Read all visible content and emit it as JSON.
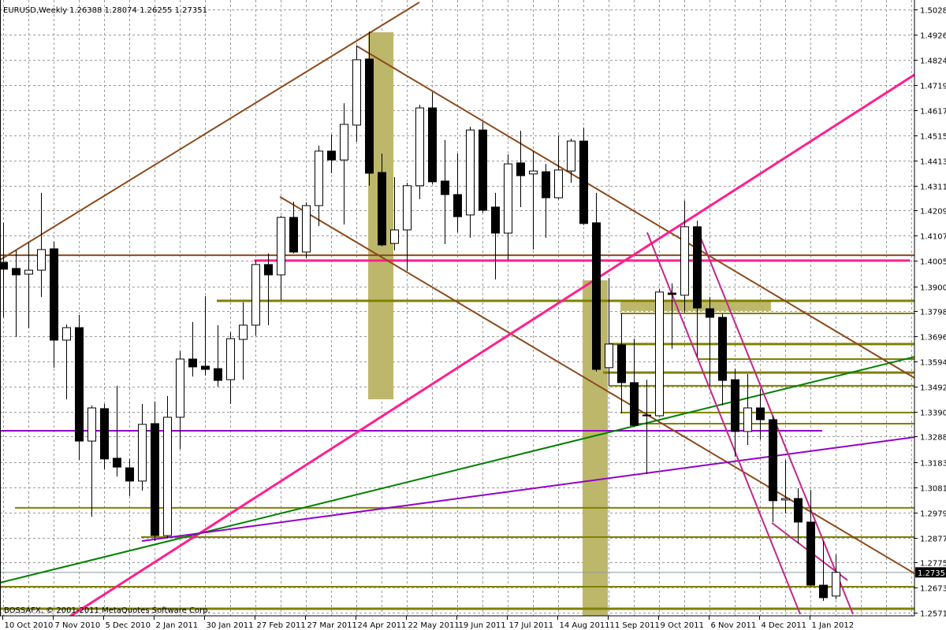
{
  "header": {
    "symbol_period": "EURUSD,Weekly",
    "ohlc": "1.26388 1.28074 1.26255 1.27351"
  },
  "footer": {
    "copyright": "BOSSAFX, © 2001-2011 MetaQuotes Software Corp."
  },
  "colors": {
    "background": "#ffffff",
    "grid": "#9a9a9a",
    "candle": "#000000",
    "brown_line": "#8b4a1c",
    "pink_line": "#ff1f8f",
    "olive_line": "#808000",
    "olive_zone": "#bdb76b",
    "green_line": "#008000",
    "purple_line": "#9400c8",
    "magenta_line": "#c0288a",
    "price_line": "#8a9aa0",
    "current_price_bg": "#000000"
  },
  "chart_data": {
    "type": "candlestick",
    "symbol": "EURUSD",
    "timeframe": "Weekly",
    "ylim": [
      1.2558,
      1.5066
    ],
    "grid": true,
    "y_ticks": [
      "1.50280",
      "1.49260",
      "1.48240",
      "1.47190",
      "1.46170",
      "1.45150",
      "1.44130",
      "1.43110",
      "1.42090",
      "1.41070",
      "1.40050",
      "1.39000",
      "1.37980",
      "1.36960",
      "1.35940",
      "1.34920",
      "1.33900",
      "1.32880",
      "1.31830",
      "1.30810",
      "1.29790",
      "1.28770",
      "1.27750",
      "1.26730",
      "1.25710"
    ],
    "x_ticks": [
      "10 Oct 2010",
      "7 Nov 2010",
      "5 Dec 2010",
      "2 Jan 2011",
      "30 Jan 2011",
      "27 Feb 2011",
      "27 Mar 2011",
      "24 Apr 2011",
      "22 May 2011",
      "19 Jun 2011",
      "17 Jul 2011",
      "14 Aug 2011",
      "11 Sep 2011",
      "9 Oct 2011",
      "6 Nov 2011",
      "4 Dec 2011",
      "1 Jan 2012"
    ],
    "x_tick_every_bars": 4,
    "current_price": "1.27351",
    "ohlc_fields": [
      "open",
      "high",
      "low",
      "close"
    ],
    "candles": [
      [
        1.3998,
        1.4159,
        1.3774,
        1.397
      ],
      [
        1.3973,
        1.4047,
        1.3694,
        1.3947
      ],
      [
        1.395,
        1.4079,
        1.3729,
        1.3966
      ],
      [
        1.3966,
        1.4281,
        1.3857,
        1.405
      ],
      [
        1.4053,
        1.4082,
        1.3569,
        1.3681
      ],
      [
        1.3681,
        1.3745,
        1.344,
        1.3732
      ],
      [
        1.3732,
        1.3784,
        1.3193,
        1.327
      ],
      [
        1.327,
        1.3415,
        1.2962,
        1.3405
      ],
      [
        1.3402,
        1.3421,
        1.3155,
        1.3197
      ],
      [
        1.32,
        1.3495,
        1.3126,
        1.3164
      ],
      [
        1.3161,
        1.3197,
        1.3046,
        1.3107
      ],
      [
        1.3107,
        1.3421,
        1.3068,
        1.3338
      ],
      [
        1.3341,
        1.3431,
        1.2863,
        1.2885
      ],
      [
        1.2885,
        1.3453,
        1.2876,
        1.3367
      ],
      [
        1.3367,
        1.3636,
        1.3238,
        1.3604
      ],
      [
        1.3604,
        1.3755,
        1.3533,
        1.3572
      ],
      [
        1.3575,
        1.386,
        1.3537,
        1.3562
      ],
      [
        1.3565,
        1.3742,
        1.3492,
        1.3517
      ],
      [
        1.352,
        1.3713,
        1.3421,
        1.3687
      ],
      [
        1.3684,
        1.3835,
        1.352,
        1.3742
      ],
      [
        1.3742,
        1.4005,
        1.37,
        1.3989
      ],
      [
        1.3989,
        1.4034,
        1.3742,
        1.3947
      ],
      [
        1.3947,
        1.4188,
        1.3844,
        1.4181
      ],
      [
        1.4181,
        1.4245,
        1.4034,
        1.404
      ],
      [
        1.404,
        1.4242,
        1.4014,
        1.4229
      ],
      [
        1.4229,
        1.4473,
        1.4146,
        1.4451
      ],
      [
        1.4451,
        1.4518,
        1.4361,
        1.4415
      ],
      [
        1.4415,
        1.4646,
        1.4152,
        1.456
      ],
      [
        1.4557,
        1.488,
        1.4489,
        1.4823
      ],
      [
        1.4826,
        1.4938,
        1.431,
        1.4361
      ],
      [
        1.4364,
        1.4441,
        1.4063,
        1.4069
      ],
      [
        1.4075,
        1.4345,
        1.4047,
        1.413
      ],
      [
        1.413,
        1.4322,
        1.3963,
        1.431
      ],
      [
        1.431,
        1.464,
        1.4255,
        1.4627
      ],
      [
        1.4627,
        1.4691,
        1.4316,
        1.4326
      ],
      [
        1.4329,
        1.4496,
        1.4072,
        1.4274
      ],
      [
        1.4274,
        1.4441,
        1.412,
        1.4184
      ],
      [
        1.4191,
        1.455,
        1.4098,
        1.4537
      ],
      [
        1.4537,
        1.4569,
        1.42,
        1.421
      ],
      [
        1.4223,
        1.4281,
        1.3928,
        1.4117
      ],
      [
        1.4117,
        1.4438,
        1.4008,
        1.4399
      ],
      [
        1.4403,
        1.4534,
        1.4223,
        1.4351
      ],
      [
        1.4358,
        1.4451,
        1.405,
        1.437
      ],
      [
        1.4367,
        1.4399,
        1.4098,
        1.4261
      ],
      [
        1.4261,
        1.4515,
        1.4255,
        1.4374
      ],
      [
        1.437,
        1.4502,
        1.4322,
        1.4492
      ],
      [
        1.4492,
        1.4547,
        1.415,
        1.4156
      ],
      [
        1.4159,
        1.4281,
        1.3553,
        1.3562
      ],
      [
        1.3569,
        1.3934,
        1.3495,
        1.3665
      ],
      [
        1.3662,
        1.379,
        1.3383,
        1.3508
      ],
      [
        1.3508,
        1.3687,
        1.333,
        1.3334
      ],
      [
        1.3376,
        1.352,
        1.3136,
        1.3373
      ],
      [
        1.3373,
        1.3889,
        1.337,
        1.3877
      ],
      [
        1.3873,
        1.3912,
        1.3646,
        1.3867
      ],
      [
        1.3864,
        1.4249,
        1.3793,
        1.4143
      ],
      [
        1.4143,
        1.4168,
        1.3613,
        1.3812
      ],
      [
        1.3809,
        1.3857,
        1.3495,
        1.3774
      ],
      [
        1.3774,
        1.3787,
        1.3415,
        1.3517
      ],
      [
        1.352,
        1.3565,
        1.3206,
        1.3309
      ],
      [
        1.3309,
        1.3543,
        1.3254,
        1.3405
      ],
      [
        1.3405,
        1.3482,
        1.3277,
        1.3357
      ],
      [
        1.3357,
        1.3373,
        1.294,
        1.3027
      ],
      [
        1.303,
        1.3193,
        1.2975,
        1.3036
      ],
      [
        1.3036,
        1.3078,
        1.2853,
        1.294
      ],
      [
        1.294,
        1.3071,
        1.268,
        1.2683
      ],
      [
        1.2683,
        1.2863,
        1.2619,
        1.2632
      ],
      [
        1.26388,
        1.28074,
        1.26255,
        1.27351
      ]
    ],
    "objects": {
      "trendlines": [
        {
          "color": "brown_line",
          "from": [
            -0.25,
            1.4008
          ],
          "to": [
            33,
            1.5057
          ],
          "width": 2
        },
        {
          "color": "brown_line",
          "from": [
            28,
            1.488
          ],
          "to": [
            72.25,
            1.3527
          ],
          "width": 2
        },
        {
          "color": "brown_line",
          "from": [
            21.94,
            1.4265
          ],
          "to": [
            72.25,
            1.2731
          ],
          "width": 2
        },
        {
          "color": "pink_line",
          "from": [
            4.125,
            1.2517
          ],
          "to": [
            72.25,
            1.4762
          ],
          "width": 3
        },
        {
          "color": "green_line",
          "from": [
            -0.25,
            1.2693
          ],
          "to": [
            72.25,
            1.3613
          ],
          "width": 2
        },
        {
          "color": "purple_line",
          "from": [
            11,
            1.2863
          ],
          "to": [
            72.25,
            1.3286
          ],
          "width": 2
        },
        {
          "color": "magenta_line",
          "from": [
            51.06,
            1.412
          ],
          "to": [
            63.19,
            1.2565
          ],
          "width": 2
        },
        {
          "color": "magenta_line",
          "from": [
            55,
            1.4136
          ],
          "to": [
            67.375,
            1.2565
          ],
          "width": 2
        },
        {
          "color": "magenta_line",
          "from": [
            60.94,
            1.2937
          ],
          "to": [
            66.94,
            1.2703
          ],
          "width": 2
        }
      ],
      "horizontal_lines": [
        {
          "color": "brown_line",
          "price": 1.4027,
          "from_bar": -0.25,
          "width": 2
        },
        {
          "color": "pink_line",
          "price": 1.4005,
          "from_bar": 19.9,
          "to_bar": 71.9,
          "width": 3
        },
        {
          "color": "purple_line",
          "price": 1.3312,
          "from_bar": -0.25,
          "to_bar": 64.94,
          "width": 2
        },
        {
          "color": "olive_line",
          "price": 1.3841,
          "from_bar": 16.94,
          "width": 3
        },
        {
          "color": "olive_line",
          "price": 1.379,
          "from_bar": 48.94,
          "width": 2
        },
        {
          "color": "olive_line",
          "price": 1.3665,
          "from_bar": 48,
          "width": 3
        },
        {
          "color": "olive_line",
          "price": 1.3604,
          "from_bar": 55.06,
          "width": 2
        },
        {
          "color": "olive_line",
          "price": 1.3549,
          "from_bar": 47.56,
          "width": 3
        },
        {
          "color": "olive_line",
          "price": 1.3495,
          "from_bar": 48,
          "width": 2
        },
        {
          "color": "olive_line",
          "price": 1.3386,
          "from_bar": 48.94,
          "width": 2
        },
        {
          "color": "olive_line",
          "price": 1.3341,
          "from_bar": 49.94,
          "width": 2
        },
        {
          "color": "olive_line",
          "price": 1.2998,
          "from_bar": 0.94,
          "width": 2
        },
        {
          "color": "olive_line",
          "price": 1.2879,
          "from_bar": 10.94,
          "width": 2
        },
        {
          "color": "olive_line",
          "price": 1.2677,
          "from_bar": -0.25,
          "width": 2
        },
        {
          "color": "olive_line",
          "price": 1.2587,
          "from_bar": -0.25,
          "width": 3
        },
        {
          "color": "price_line",
          "price": 1.27351,
          "from_bar": -0.25,
          "width": 1
        }
      ],
      "zones": [
        {
          "color": "olive_zone",
          "from_bar": 28.94,
          "to_bar": 30.94,
          "top": 1.4935,
          "bottom": 1.344
        },
        {
          "color": "olive_zone",
          "from_bar": 45.94,
          "to_bar": 47.94,
          "top": 1.3925,
          "bottom": 1.2558
        },
        {
          "color": "olive_zone",
          "from_bar": 48.94,
          "to_bar": 60.875,
          "top": 1.3838,
          "bottom": 1.38
        }
      ]
    }
  }
}
